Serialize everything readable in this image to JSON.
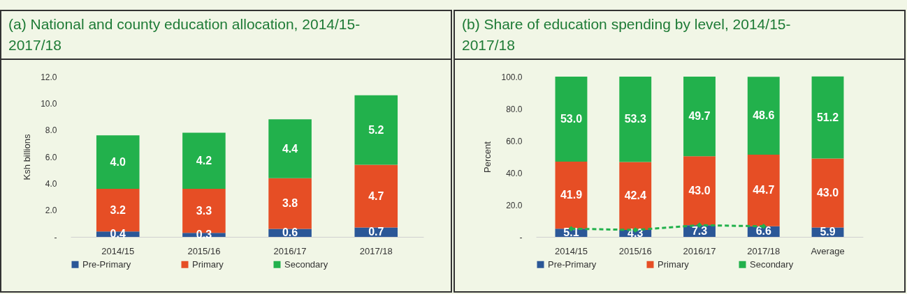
{
  "chart_data": [
    {
      "type": "bar",
      "title": "(a) National and county education allocation, 2014/15-2017/18",
      "ylabel": "Ksh billions",
      "categories": [
        "2014/15",
        "2015/16",
        "2016/17",
        "2017/18"
      ],
      "stacked": true,
      "legend": "bottom",
      "ylim": [
        0,
        12
      ],
      "yticks": [
        {
          "value": 0,
          "label": "-"
        },
        {
          "value": 2,
          "label": "2.0"
        },
        {
          "value": 4,
          "label": "4.0"
        },
        {
          "value": 6,
          "label": "6.0"
        },
        {
          "value": 8,
          "label": "8.0"
        },
        {
          "value": 10,
          "label": "10.0"
        },
        {
          "value": 12,
          "label": "12.0"
        }
      ],
      "series": [
        {
          "name": "Pre-Primary",
          "color": "#2b5797",
          "values": [
            0.4,
            0.3,
            0.6,
            0.7
          ],
          "value_labels": [
            "0.4",
            "0.3",
            "0.6",
            "0.7"
          ]
        },
        {
          "name": "Primary",
          "color": "#e64e25",
          "values": [
            3.2,
            3.3,
            3.8,
            4.7
          ],
          "value_labels": [
            "3.2",
            "3.3",
            "3.8",
            "4.7"
          ]
        },
        {
          "name": "Secondary",
          "color": "#22b14c",
          "values": [
            4.0,
            4.2,
            4.4,
            5.2
          ],
          "value_labels": [
            "4.0",
            "4.2",
            "4.4",
            "5.2"
          ]
        }
      ]
    },
    {
      "type": "bar",
      "title": "(b) Share of education spending by level, 2014/15-2017/18",
      "ylabel": "Percent",
      "categories": [
        "2014/15",
        "2015/16",
        "2016/17",
        "2017/18",
        "Average"
      ],
      "stacked": true,
      "legend": "bottom",
      "ylim": [
        0,
        100
      ],
      "yticks": [
        {
          "value": 0,
          "label": "-"
        },
        {
          "value": 20,
          "label": "20.0"
        },
        {
          "value": 40,
          "label": "40.0"
        },
        {
          "value": 60,
          "label": "60.0"
        },
        {
          "value": 80,
          "label": "80.0"
        },
        {
          "value": 100,
          "label": "100.0"
        }
      ],
      "series": [
        {
          "name": "Pre-Primary",
          "color": "#2b5797",
          "values": [
            5.1,
            4.3,
            7.3,
            6.6,
            5.9
          ],
          "value_labels": [
            "5.1",
            "4.3",
            "7.3",
            "6.6",
            "5.9"
          ]
        },
        {
          "name": "Primary",
          "color": "#e64e25",
          "values": [
            41.9,
            42.4,
            43.0,
            44.7,
            43.0
          ],
          "value_labels": [
            "41.9",
            "42.4",
            "43.0",
            "44.7",
            "43.0"
          ]
        },
        {
          "name": "Secondary",
          "color": "#22b14c",
          "values": [
            53.0,
            53.3,
            49.7,
            48.6,
            51.2
          ],
          "value_labels": [
            "53.0",
            "53.3",
            "49.7",
            "48.6",
            "51.2"
          ]
        },
        {
          "type": "line",
          "color": "#22b14c",
          "line_style": "dashed",
          "marker": "diamond",
          "x": [
            "2014/15",
            "2015/16",
            "2016/17",
            "2017/18"
          ],
          "values": [
            5.1,
            4.3,
            7.3,
            6.6
          ]
        }
      ]
    }
  ]
}
